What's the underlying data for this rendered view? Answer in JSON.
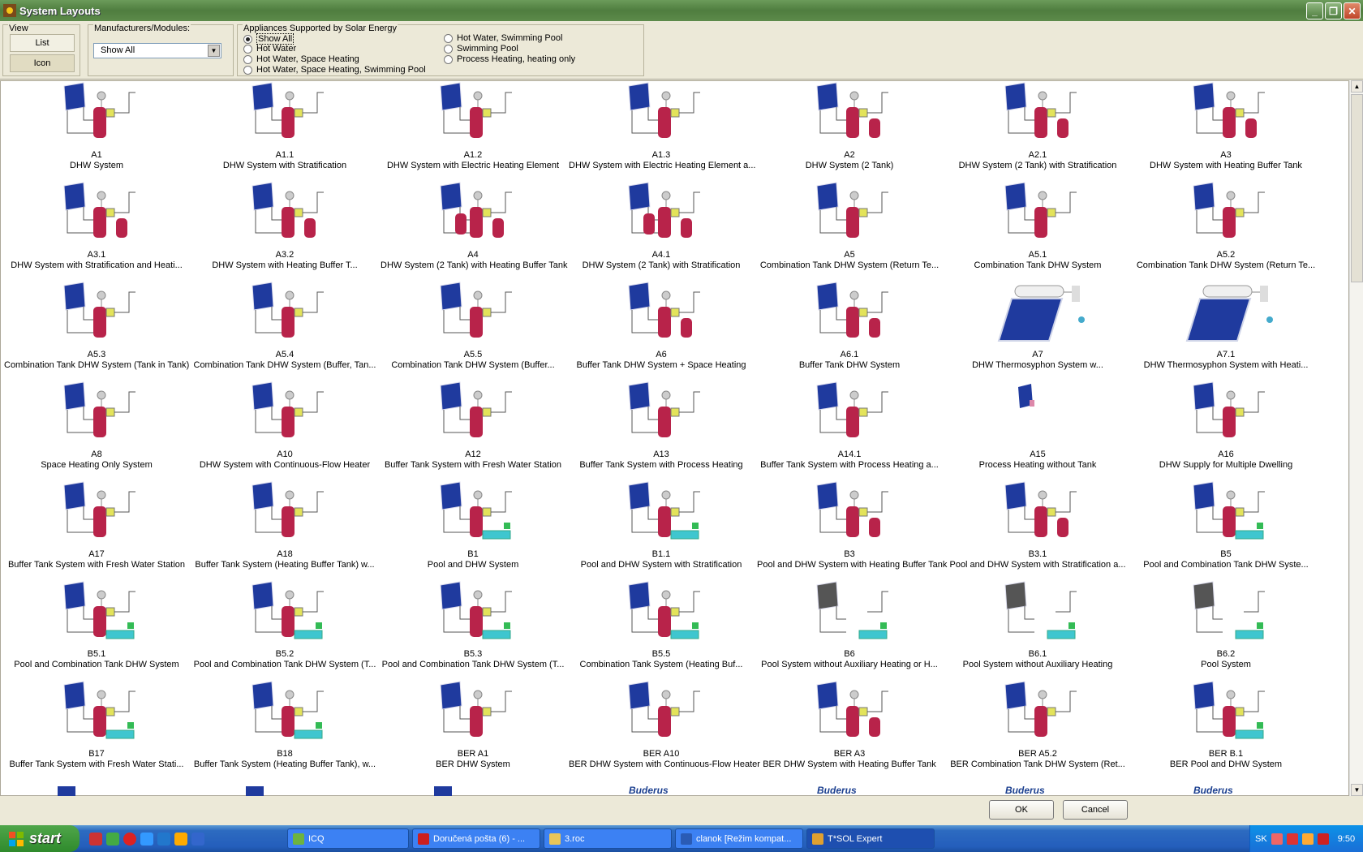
{
  "window": {
    "title": "System Layouts"
  },
  "toolbar": {
    "view": {
      "legend": "View",
      "list_label": "List",
      "icon_label": "Icon"
    },
    "manufacturers": {
      "legend": "Manufacturers/Modules:",
      "selected": "Show All"
    },
    "appliances": {
      "legend": "Appliances Supported by Solar Energy",
      "options": [
        "Show All",
        "Hot Water",
        "Hot Water, Space Heating",
        "Hot Water, Space Heating, Swimming Pool",
        "Hot Water, Swimming Pool",
        "Swimming Pool",
        "Process Heating, heating only"
      ],
      "selected": "Show All"
    }
  },
  "systems": [
    {
      "code": "A1",
      "name": "DHW System",
      "kind": "tank"
    },
    {
      "code": "A1.1",
      "name": "DHW System with Stratification",
      "kind": "tank"
    },
    {
      "code": "A1.2",
      "name": "DHW System with Electric Heating Element",
      "kind": "tank"
    },
    {
      "code": "A1.3",
      "name": "DHW System with Electric Heating Element a...",
      "kind": "tank"
    },
    {
      "code": "A2",
      "name": "DHW System (2 Tank)",
      "kind": "tank2"
    },
    {
      "code": "A2.1",
      "name": "DHW System (2 Tank) with Stratification",
      "kind": "tank2"
    },
    {
      "code": "A3",
      "name": "DHW System with Heating Buffer Tank",
      "kind": "tank2"
    },
    {
      "code": "A3.1",
      "name": "DHW System with Stratification and Heati...",
      "kind": "tank2"
    },
    {
      "code": "A3.2",
      "name": "DHW System with Heating Buffer T...",
      "kind": "tank2"
    },
    {
      "code": "A4",
      "name": "DHW System (2 Tank) with Heating Buffer Tank",
      "kind": "tank3"
    },
    {
      "code": "A4.1",
      "name": "DHW System (2 Tank) with Stratification",
      "kind": "tank3"
    },
    {
      "code": "A5",
      "name": "Combination Tank DHW System (Return Te...",
      "kind": "tank"
    },
    {
      "code": "A5.1",
      "name": "Combination Tank DHW System",
      "kind": "tank"
    },
    {
      "code": "A5.2",
      "name": "Combination Tank DHW System (Return Te...",
      "kind": "tank"
    },
    {
      "code": "A5.3",
      "name": "Combination Tank DHW System (Tank in Tank)",
      "kind": "tank"
    },
    {
      "code": "A5.4",
      "name": "Combination Tank DHW System (Buffer, Tan...",
      "kind": "tank"
    },
    {
      "code": "A5.5",
      "name": "Combination Tank DHW System (Buffer...",
      "kind": "tank"
    },
    {
      "code": "A6",
      "name": "Buffer Tank DHW System + Space Heating",
      "kind": "tank2"
    },
    {
      "code": "A6.1",
      "name": "Buffer Tank DHW System",
      "kind": "tank2"
    },
    {
      "code": "A7",
      "name": "DHW Thermosyphon System w...",
      "kind": "thermo"
    },
    {
      "code": "A7.1",
      "name": "DHW Thermosyphon System with Heati...",
      "kind": "thermo"
    },
    {
      "code": "A8",
      "name": "Space Heating Only System",
      "kind": "tank"
    },
    {
      "code": "A10",
      "name": "DHW System with Continuous-Flow Heater",
      "kind": "tank"
    },
    {
      "code": "A12",
      "name": "Buffer Tank System with Fresh Water Station",
      "kind": "tank"
    },
    {
      "code": "A13",
      "name": "Buffer Tank System with Process Heating",
      "kind": "tank"
    },
    {
      "code": "A14.1",
      "name": "Buffer Tank System with Process Heating a...",
      "kind": "tank"
    },
    {
      "code": "A15",
      "name": "Process Heating without Tank",
      "kind": "small"
    },
    {
      "code": "A16",
      "name": "DHW Supply for Multiple Dwelling",
      "kind": "tank"
    },
    {
      "code": "A17",
      "name": "Buffer Tank System with Fresh Water Station",
      "kind": "tank"
    },
    {
      "code": "A18",
      "name": "Buffer Tank System (Heating Buffer Tank) w...",
      "kind": "tank"
    },
    {
      "code": "B1",
      "name": "Pool and DHW System",
      "kind": "pool"
    },
    {
      "code": "B1.1",
      "name": "Pool and DHW System with Stratification",
      "kind": "pool"
    },
    {
      "code": "B3",
      "name": "Pool and DHW System with Heating Buffer Tank",
      "kind": "tank2"
    },
    {
      "code": "B3.1",
      "name": "Pool and DHW System with Stratification a...",
      "kind": "tank2"
    },
    {
      "code": "B5",
      "name": "Pool and Combination Tank DHW Syste...",
      "kind": "pool"
    },
    {
      "code": "B5.1",
      "name": "Pool and Combination Tank DHW System",
      "kind": "pool"
    },
    {
      "code": "B5.2",
      "name": "Pool and Combination Tank DHW System (T...",
      "kind": "pool"
    },
    {
      "code": "B5.3",
      "name": "Pool and Combination Tank DHW System (T...",
      "kind": "pool"
    },
    {
      "code": "B5.5",
      "name": "Combination Tank System (Heating Buf...",
      "kind": "pool"
    },
    {
      "code": "B6",
      "name": "Pool System without Auxiliary Heating or H...",
      "kind": "poolonly"
    },
    {
      "code": "B6.1",
      "name": "Pool System without Auxiliary Heating",
      "kind": "poolonly"
    },
    {
      "code": "B6.2",
      "name": "Pool System",
      "kind": "poolonly"
    },
    {
      "code": "B17",
      "name": "Buffer Tank System with Fresh Water Stati...",
      "kind": "pool"
    },
    {
      "code": "B18",
      "name": "Buffer Tank System (Heating Buffer Tank), w...",
      "kind": "pool"
    },
    {
      "code": "BER A1",
      "name": "BER DHW System",
      "kind": "tank"
    },
    {
      "code": "BER A10",
      "name": "BER DHW System with Continuous-Flow Heater",
      "kind": "tank"
    },
    {
      "code": "BER A3",
      "name": "BER DHW System with Heating Buffer Tank",
      "kind": "tank2"
    },
    {
      "code": "BER A5.2",
      "name": "BER Combination Tank DHW System (Ret...",
      "kind": "tank"
    },
    {
      "code": "BER B.1",
      "name": "BER Pool and DHW System",
      "kind": "pool"
    }
  ],
  "partial_row": {
    "logo_text": "Buderus"
  },
  "buttons": {
    "ok": "OK",
    "cancel": "Cancel"
  },
  "taskbar": {
    "start_label": "start",
    "tasks": [
      {
        "label": "ICQ",
        "color": "#6db33f"
      },
      {
        "label": "Doručená pošta (6) - ...",
        "color": "#cc1f1f"
      },
      {
        "label": "3.roc",
        "color": "#e8c55a"
      },
      {
        "label": "clanok [Režim kompat...",
        "color": "#2a5bb5"
      },
      {
        "label": "T*SOL Expert",
        "color": "#e0a030"
      }
    ],
    "lang": "SK",
    "clock": "9:50"
  },
  "colors": {
    "tank": "#b8234a",
    "panel": "#1f3a9e",
    "accent": "#e3e35a",
    "pool": "#3fc6cf"
  }
}
